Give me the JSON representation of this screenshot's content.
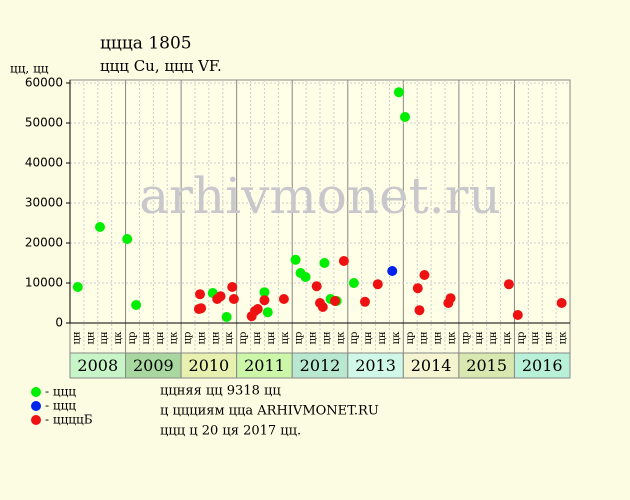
{
  "chart_data": {
    "type": "scatter",
    "title": "ццца 1805",
    "subtitle": "ццц Cu, ццц VF.",
    "ylabel": "цц, цц",
    "watermark": "arhivmonet.ru",
    "xlim": [
      2008,
      2017
    ],
    "ylim": [
      0,
      60000
    ],
    "yticks": [
      0,
      10000,
      20000,
      30000,
      40000,
      50000,
      60000
    ],
    "grid": true,
    "years": [
      "2008",
      "2009",
      "2010",
      "2011",
      "2012",
      "2013",
      "2014",
      "2015",
      "2016"
    ],
    "year_colors": [
      "#c8f5c8",
      "#a8d8a0",
      "#e8f0b0",
      "#ccf7a8",
      "#b8e8d0",
      "#d0f8e8",
      "#f4f4d0",
      "#d8e8b0",
      "#b8f0d8"
    ],
    "quarter_labels": [
      "цн",
      "цн",
      "цн",
      "цк",
      "цр",
      "цн",
      "цн",
      "цк",
      "цр",
      "цн",
      "цн",
      "цк",
      "цр",
      "цн",
      "цн",
      "цк",
      "цр",
      "цн",
      "цн",
      "цк",
      "цр",
      "цн",
      "цн",
      "цк",
      "цр",
      "цн",
      "цн",
      "цк",
      "цр",
      "цн",
      "цн",
      "цк",
      "цр",
      "цн",
      "цн",
      "цк"
    ],
    "series": [
      {
        "name": "- ццц",
        "color": "#00ee00",
        "x": [
          2008.14,
          2008.54,
          2009.03,
          2009.19,
          2010.57,
          2010.82,
          2011.5,
          2011.56,
          2012.06,
          2012.15,
          2012.24,
          2012.58,
          2012.69,
          2012.8,
          2013.11,
          2013.92,
          2014.03
        ],
        "values": [
          9000,
          24000,
          21000,
          4500,
          7500,
          1500,
          7700,
          2700,
          15800,
          12500,
          11500,
          15000,
          6000,
          5500,
          10000,
          57700,
          51500
        ]
      },
      {
        "name": "- ццц",
        "color": "#0022ee",
        "x": [
          2013.8
        ],
        "values": [
          13000
        ]
      },
      {
        "name": "- ццццБ",
        "color": "#ee1111",
        "x": [
          2010.32,
          2010.36,
          2010.34,
          2010.65,
          2010.71,
          2010.92,
          2010.95,
          2011.27,
          2011.33,
          2011.38,
          2011.5,
          2011.85,
          2012.44,
          2012.5,
          2012.55,
          2012.77,
          2012.93,
          2013.31,
          2013.54,
          2014.26,
          2014.29,
          2014.38,
          2014.81,
          2014.85,
          2015.9,
          2016.06,
          2016.85
        ],
        "values": [
          3500,
          3700,
          7200,
          6000,
          6700,
          9000,
          6000,
          1700,
          3000,
          3500,
          5700,
          6000,
          9200,
          5000,
          4000,
          5500,
          15500,
          5300,
          9700,
          8700,
          3200,
          12000,
          5000,
          6200,
          9700,
          2000,
          5000
        ]
      }
    ],
    "footer": [
      "ццняя цц 9318 цц",
      "ц ццциям цца ARHIVMONET.RU",
      "ццц ц 20 ця 2017 цц."
    ]
  }
}
